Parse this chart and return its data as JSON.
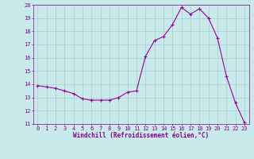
{
  "hours": [
    0,
    1,
    2,
    3,
    4,
    5,
    6,
    7,
    8,
    9,
    10,
    11,
    12,
    13,
    14,
    15,
    16,
    17,
    18,
    19,
    20,
    21,
    22,
    23
  ],
  "values": [
    13.9,
    13.8,
    13.7,
    13.5,
    13.3,
    12.9,
    12.8,
    12.8,
    12.8,
    13.0,
    13.4,
    13.5,
    16.1,
    17.3,
    17.6,
    18.5,
    19.8,
    19.3,
    19.7,
    19.0,
    17.5,
    14.6,
    12.6,
    11.1
  ],
  "ylim": [
    11,
    20
  ],
  "yticks": [
    11,
    12,
    13,
    14,
    15,
    16,
    17,
    18,
    19,
    20
  ],
  "xlim": [
    -0.5,
    23.5
  ],
  "xticks": [
    0,
    1,
    2,
    3,
    4,
    5,
    6,
    7,
    8,
    9,
    10,
    11,
    12,
    13,
    14,
    15,
    16,
    17,
    18,
    19,
    20,
    21,
    22,
    23
  ],
  "xlabel": "Windchill (Refroidissement éolien,°C)",
  "line_color": "#990099",
  "marker": "+",
  "bg_color": "#c8eaea",
  "grid_color": "#aacccc",
  "text_color": "#880088",
  "tick_fontsize": 5.0,
  "xlabel_fontsize": 5.5
}
